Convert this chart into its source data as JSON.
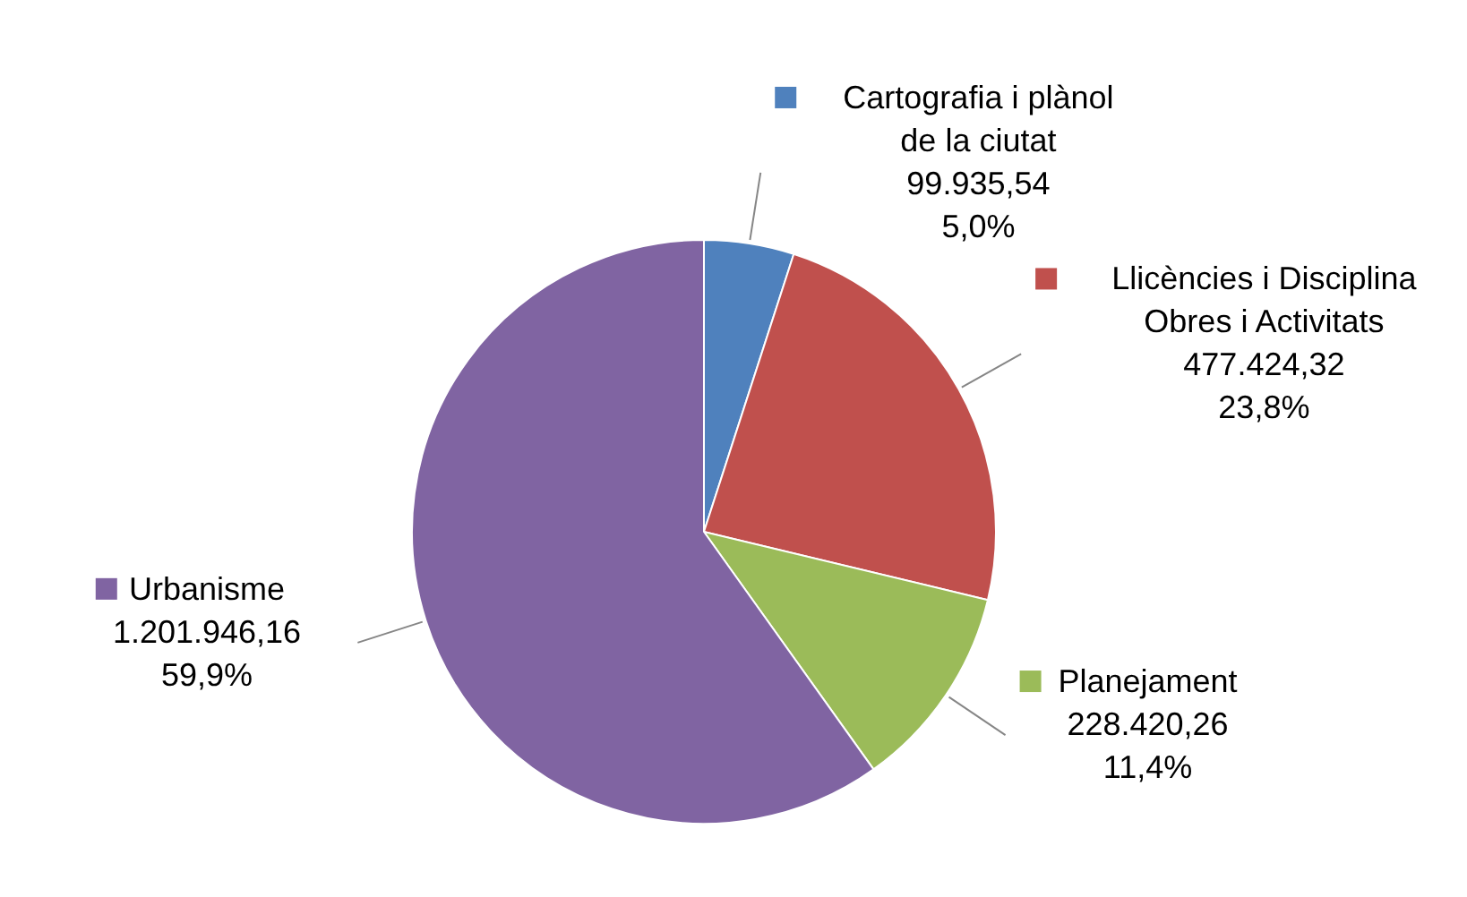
{
  "chart_data": {
    "type": "pie",
    "categories": [
      "Cartografia i plànol\nde la ciutat",
      "Llicències i Disciplina\nObres i Activitats",
      "Planejament",
      "Urbanisme"
    ],
    "values": [
      99935.54,
      477424.32,
      228420.26,
      1201946.16
    ],
    "colors": [
      "#4f81bd",
      "#c0504d",
      "#9bbb59",
      "#8064a2"
    ],
    "value_labels": [
      "99.935,54\n5,0%",
      "477.424,32\n23,8%",
      "228.420,26\n11,4%",
      "1.201.946,16\n59,9%"
    ],
    "legend": "right"
  }
}
